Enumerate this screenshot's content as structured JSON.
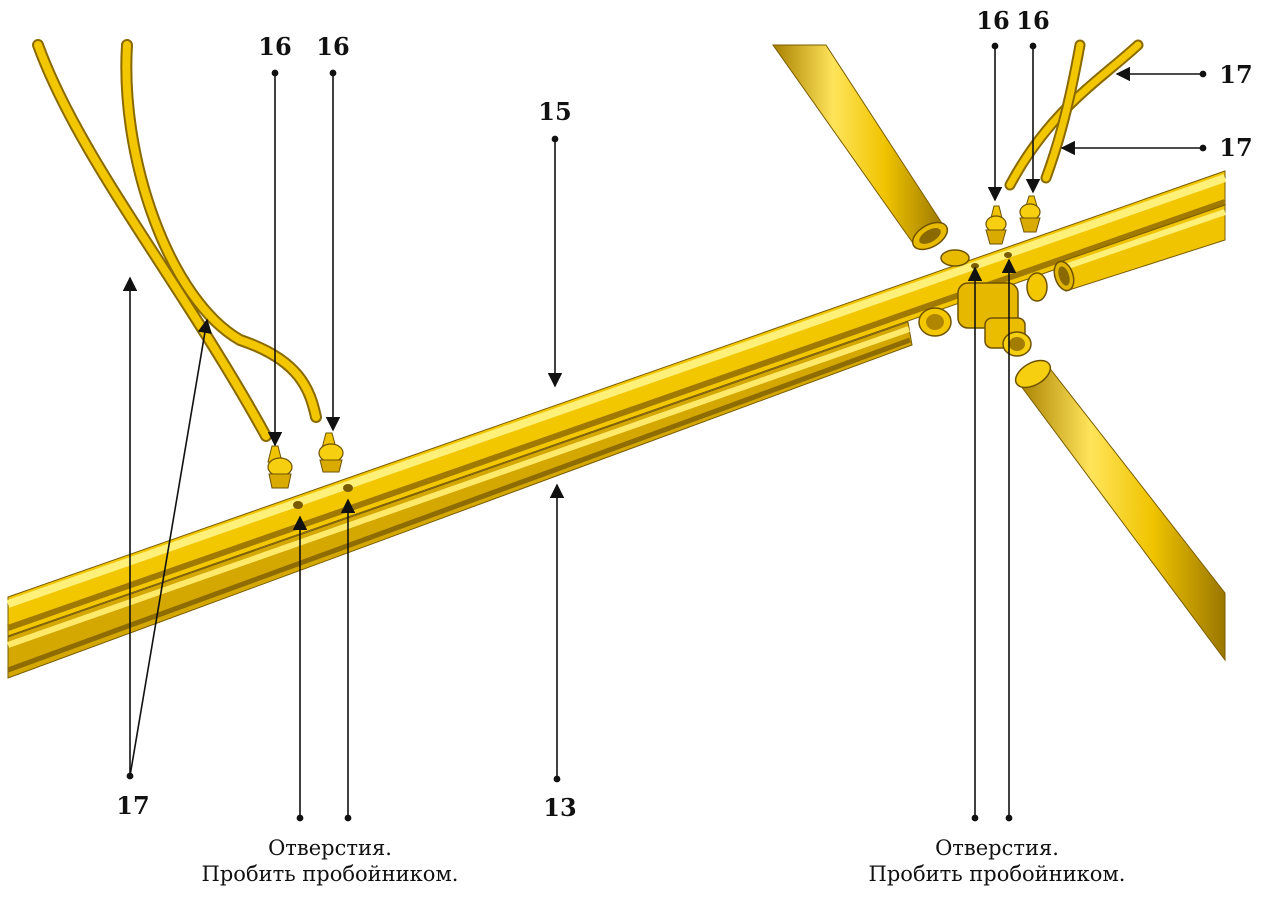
{
  "labels": {
    "feeder_tube": "17",
    "dripper": "16",
    "upper_pipe": "15",
    "lower_pipe": "13"
  },
  "captions": {
    "left": {
      "line1": "Отверстия.",
      "line2": "Пробить пробойником."
    },
    "right": {
      "line1": "Отверстия.",
      "line2": "Пробить пробойником."
    }
  },
  "colors": {
    "pipe_light": "#ffe85a",
    "pipe_mid": "#f2c700",
    "pipe_dark": "#b98e00",
    "ink": "#111111"
  }
}
